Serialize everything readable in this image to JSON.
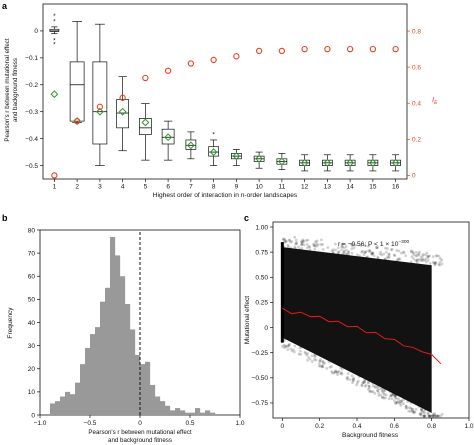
{
  "panels": {
    "a": {
      "letter": "a",
      "chart_data": {
        "type": "box",
        "xlabel_prefix": "Highest order of interaction in ",
        "xlabel_italic": "n",
        "xlabel_suffix": "-order landscapes",
        "ylabel_line1": "Pearson's r between mutational effect",
        "ylabel_line2": "and background fitness",
        "y2label": "I_E",
        "y2label_main": "I",
        "y2label_sub": "E",
        "categories": [
          1,
          2,
          3,
          4,
          5,
          6,
          7,
          8,
          9,
          10,
          11,
          12,
          13,
          14,
          15,
          16
        ],
        "ylim": [
          -0.55,
          0.1
        ],
        "yticks": [
          0,
          -0.1,
          -0.2,
          -0.3,
          -0.4,
          -0.5
        ],
        "ytick_labels": [
          "0",
          "−0.1",
          "−0.2",
          "−0.3",
          "−0.4",
          "−0.5"
        ],
        "y2lim": [
          -0.02,
          0.95
        ],
        "y2ticks": [
          0,
          0.2,
          0.4,
          0.6,
          0.8
        ],
        "y2tick_labels": [
          "0",
          "0.2",
          "0.4",
          "0.6",
          "0.8"
        ],
        "boxes": [
          {
            "x": 1,
            "whislo": -0.01,
            "q1": -0.002,
            "med": 0.0,
            "q3": 0.006,
            "whishi": 0.015,
            "fliers": [
              0.055,
              0.035,
              -0.035,
              -0.05
            ]
          },
          {
            "x": 2,
            "whislo": -0.34,
            "q1": -0.335,
            "med": -0.2,
            "q3": -0.115,
            "whishi": 0.035,
            "fliers": []
          },
          {
            "x": 3,
            "whislo": -0.5,
            "q1": -0.42,
            "med": -0.3,
            "q3": -0.115,
            "whishi": 0.025,
            "fliers": []
          },
          {
            "x": 4,
            "whislo": -0.445,
            "q1": -0.36,
            "med": -0.305,
            "q3": -0.255,
            "whishi": -0.17,
            "fliers": []
          },
          {
            "x": 5,
            "whislo": -0.48,
            "q1": -0.385,
            "med": -0.36,
            "q3": -0.325,
            "whishi": -0.27,
            "fliers": []
          },
          {
            "x": 6,
            "whislo": -0.48,
            "q1": -0.42,
            "med": -0.395,
            "q3": -0.365,
            "whishi": -0.335,
            "fliers": []
          },
          {
            "x": 7,
            "whislo": -0.475,
            "q1": -0.44,
            "med": -0.425,
            "q3": -0.405,
            "whishi": -0.375,
            "fliers": []
          },
          {
            "x": 8,
            "whislo": -0.5,
            "q1": -0.465,
            "med": -0.45,
            "q3": -0.43,
            "whishi": -0.405,
            "fliers": [
              -0.385
            ]
          },
          {
            "x": 9,
            "whislo": -0.5,
            "q1": -0.475,
            "med": -0.465,
            "q3": -0.455,
            "whishi": -0.44,
            "fliers": []
          },
          {
            "x": 10,
            "whislo": -0.51,
            "q1": -0.485,
            "med": -0.475,
            "q3": -0.465,
            "whishi": -0.45,
            "fliers": []
          },
          {
            "x": 11,
            "whislo": -0.515,
            "q1": -0.495,
            "med": -0.485,
            "q3": -0.475,
            "whishi": -0.455,
            "fliers": []
          },
          {
            "x": 12,
            "whislo": -0.52,
            "q1": -0.5,
            "med": -0.49,
            "q3": -0.48,
            "whishi": -0.46,
            "fliers": []
          },
          {
            "x": 13,
            "whislo": -0.52,
            "q1": -0.5,
            "med": -0.49,
            "q3": -0.48,
            "whishi": -0.46,
            "fliers": []
          },
          {
            "x": 14,
            "whislo": -0.52,
            "q1": -0.5,
            "med": -0.49,
            "q3": -0.48,
            "whishi": -0.46,
            "fliers": []
          },
          {
            "x": 15,
            "whislo": -0.52,
            "q1": -0.5,
            "med": -0.49,
            "q3": -0.48,
            "whishi": -0.46,
            "fliers": []
          },
          {
            "x": 16,
            "whislo": -0.52,
            "q1": -0.5,
            "med": -0.49,
            "q3": -0.48,
            "whishi": -0.46,
            "fliers": []
          }
        ],
        "means": [
          -0.235,
          -0.335,
          -0.3,
          -0.3,
          -0.34,
          -0.395,
          -0.425,
          -0.45,
          -0.465,
          -0.475,
          -0.485,
          -0.49,
          -0.49,
          -0.49,
          -0.49,
          -0.49
        ],
        "mean_color": "#2c9a2c",
        "ie_values": [
          0.0,
          0.3,
          0.38,
          0.43,
          0.54,
          0.58,
          0.62,
          0.64,
          0.66,
          0.69,
          0.69,
          0.7,
          0.7,
          0.7,
          0.7,
          0.7
        ],
        "ie_color": "#e8401c"
      }
    },
    "b": {
      "letter": "b",
      "chart_data": {
        "type": "histogram",
        "xlabel_line1": "Pearson's r between mutational effect",
        "xlabel_line2": "and background fitness",
        "ylabel": "Frequency",
        "xlim": [
          -1.0,
          1.0
        ],
        "ylim": [
          0,
          80
        ],
        "xticks": [
          -1.0,
          -0.5,
          0,
          0.5,
          1.0
        ],
        "xtick_labels": [
          "−1.0",
          "−0.5",
          "0",
          "0.5",
          "1.0"
        ],
        "yticks": [
          0,
          10,
          20,
          30,
          40,
          50,
          60,
          70,
          80
        ],
        "ytick_labels": [
          "0",
          "10",
          "20",
          "30",
          "40",
          "50",
          "60",
          "70",
          "80"
        ],
        "bin_start": -0.9,
        "bin_width": 0.05,
        "counts": [
          5,
          6,
          8,
          10,
          9,
          14,
          22,
          29,
          35,
          38,
          49,
          55,
          77,
          69,
          60,
          48,
          37,
          26,
          22,
          23,
          13,
          8,
          6,
          4,
          2,
          3,
          2,
          1,
          1,
          3,
          1,
          2,
          1
        ],
        "bar_color": "#999999",
        "vline_x": 0
      }
    },
    "c": {
      "letter": "c",
      "chart_data": {
        "type": "scatter",
        "xlabel": "Background fitness",
        "ylabel": "Mutational effect",
        "xlim": [
          -0.05,
          1.0
        ],
        "ylim": [
          -0.9,
          1.05
        ],
        "xticks": [
          0,
          0.2,
          0.4,
          0.6,
          0.8,
          1.0
        ],
        "xtick_labels": [
          "0",
          "0.2",
          "0.4",
          "0.6",
          "0.8",
          "1.0"
        ],
        "yticks": [
          1.0,
          0.75,
          0.5,
          0.25,
          0,
          -0.25,
          -0.5,
          -0.75
        ],
        "ytick_labels": [
          "1.00",
          "0.75",
          "0.50",
          "0.25",
          "0",
          "−0.25",
          "−0.50",
          "−0.75"
        ],
        "annotation_r": "r = −0.56; P < 1 × 10",
        "annotation_exp": "−300",
        "cloud_upper_x": [
          0,
          0.8
        ],
        "cloud_upper_y": [
          0.8,
          0.62
        ],
        "cloud_lower_x": [
          0,
          0.8
        ],
        "cloud_lower_y": [
          -0.1,
          -0.85
        ],
        "trend_x": [
          0.0,
          0.05,
          0.1,
          0.15,
          0.2,
          0.25,
          0.3,
          0.35,
          0.4,
          0.45,
          0.5,
          0.55,
          0.6,
          0.65,
          0.7,
          0.75,
          0.8,
          0.85
        ],
        "trend_y": [
          0.18,
          0.15,
          0.14,
          0.12,
          0.1,
          0.07,
          0.05,
          0.02,
          0.0,
          -0.04,
          -0.06,
          -0.1,
          -0.13,
          -0.17,
          -0.21,
          -0.23,
          -0.28,
          -0.35
        ],
        "trend_color": "#dd1c1c"
      }
    }
  }
}
